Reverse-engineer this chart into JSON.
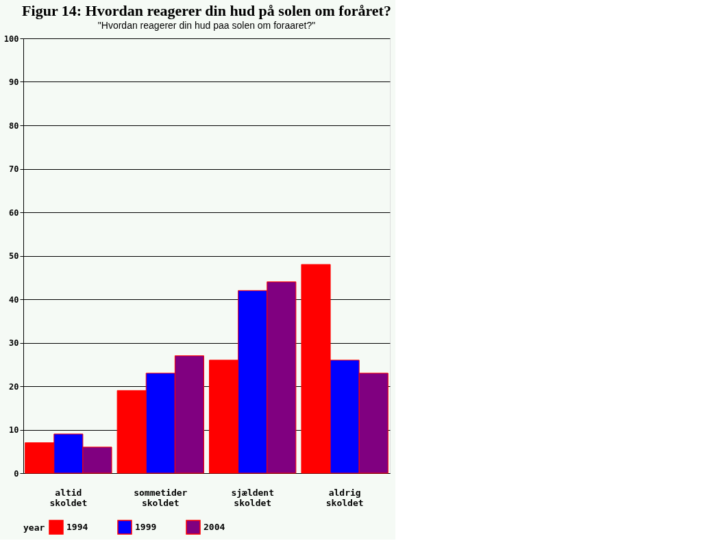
{
  "chart_data": {
    "type": "bar",
    "title": "Figur 14: Hvordan reagerer din hud på solen om foråret?",
    "subtitle": "\"Hvordan reagerer din hud paa solen om foraaret?\"",
    "categories": [
      "altid skoldet",
      "sommetider skoldet",
      "sjældent skoldet",
      "aldrig skoldet"
    ],
    "legend_title": "year",
    "series": [
      {
        "name": "1994",
        "color": "#ff0000",
        "values": [
          7,
          19,
          26,
          48
        ]
      },
      {
        "name": "1999",
        "color": "#0000ff",
        "values": [
          9,
          23,
          42,
          26
        ]
      },
      {
        "name": "2004",
        "color": "#800080",
        "values": [
          6,
          27,
          44,
          23
        ]
      }
    ],
    "ylim": [
      0,
      100
    ],
    "yticks": [
      0,
      10,
      20,
      30,
      40,
      50,
      60,
      70,
      80,
      90,
      100
    ],
    "grid": "y",
    "legend": "bottom"
  }
}
